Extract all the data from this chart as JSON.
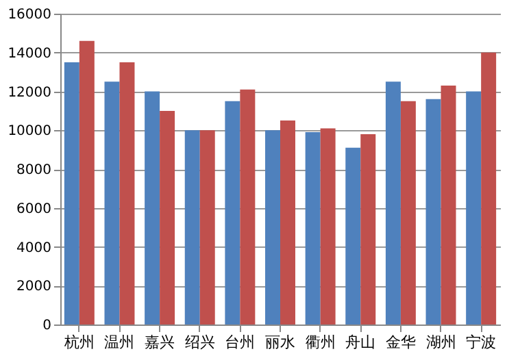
{
  "chart_data": {
    "type": "bar",
    "categories": [
      "杭州",
      "温州",
      "嘉兴",
      "绍兴",
      "台州",
      "丽水",
      "衢州",
      "舟山",
      "金华",
      "湖州",
      "宁波"
    ],
    "series": [
      {
        "color": "#4f81bd",
        "values": [
          13500,
          12500,
          12000,
          10000,
          11500,
          10000,
          9900,
          9100,
          12500,
          11600,
          12000
        ]
      },
      {
        "color": "#c0504d",
        "values": [
          14600,
          13500,
          11000,
          10000,
          12100,
          10500,
          10100,
          9800,
          11500,
          12300,
          14000
        ]
      }
    ],
    "ylim": [
      0,
      16000
    ],
    "yticks": [
      0,
      2000,
      4000,
      6000,
      8000,
      10000,
      12000,
      14000,
      16000
    ],
    "grid": "y"
  }
}
